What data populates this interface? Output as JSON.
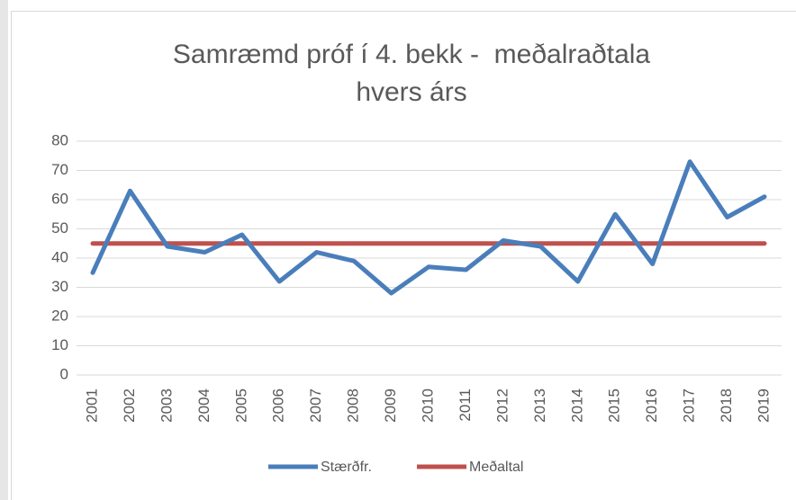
{
  "chart_data": {
    "type": "line",
    "title": [
      "Samræmd próf í 4. bekk -  meðalraðtala",
      "hvers árs"
    ],
    "categories": [
      "2001",
      "2002",
      "2003",
      "2004",
      "2005",
      "2006",
      "2007",
      "2008",
      "2009",
      "2010",
      "2011",
      "2012",
      "2013",
      "2014",
      "2015",
      "2016",
      "2017",
      "2018",
      "2019"
    ],
    "series": [
      {
        "name": "Stærðfr.",
        "color": "#4a7ebb",
        "values": [
          35,
          63,
          44,
          42,
          48,
          32,
          42,
          39,
          28,
          37,
          36,
          46,
          44,
          32,
          55,
          38,
          73,
          54,
          61
        ]
      },
      {
        "name": "Meðaltal",
        "color": "#c0504d",
        "values": [
          45,
          45,
          45,
          45,
          45,
          45,
          45,
          45,
          45,
          45,
          45,
          45,
          45,
          45,
          45,
          45,
          45,
          45,
          45
        ]
      }
    ],
    "ylim": [
      0,
      80
    ],
    "yticks": [
      0,
      10,
      20,
      30,
      40,
      50,
      60,
      70,
      80
    ],
    "grid": true,
    "legend": "bottom"
  }
}
